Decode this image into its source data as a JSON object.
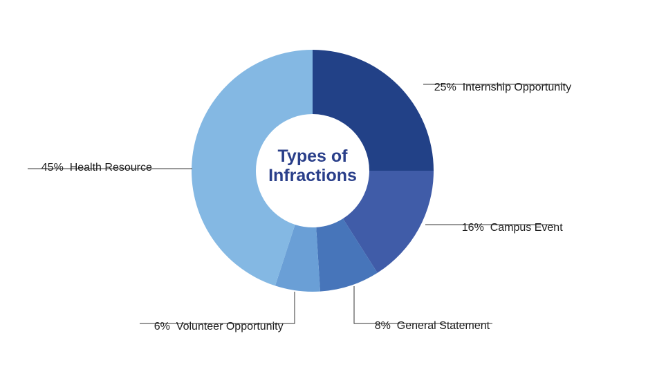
{
  "chart_data": {
    "type": "pie",
    "title": "Types of Infractions",
    "unit": "%",
    "slices": [
      {
        "label": "Internship Opportunity",
        "value": 25,
        "color": "#224187"
      },
      {
        "label": "Campus Event",
        "value": 16,
        "color": "#405ca8"
      },
      {
        "label": "General Statement",
        "value": 8,
        "color": "#4775ba"
      },
      {
        "label": "Volunteer Opportunity",
        "value": 6,
        "color": "#6a9fd6"
      },
      {
        "label": "Health Resource",
        "value": 45,
        "color": "#84b8e3"
      }
    ],
    "title_color": "#2a3f8a",
    "leader_color": "#333333"
  }
}
